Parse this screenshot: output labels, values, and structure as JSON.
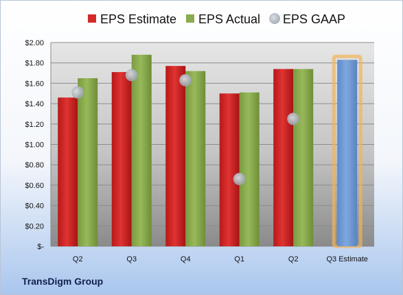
{
  "company": "TransDigm Group",
  "colors": {
    "estimate": "#d42a2a",
    "actual": "#8aab4e",
    "gaap": "#b9c1cb",
    "forecast": "#6f9ad3",
    "forecast_glow": "#f4b45a"
  },
  "chart_data": {
    "type": "bar",
    "categories": [
      "Q2",
      "Q3",
      "Q4",
      "Q1",
      "Q2",
      "Q3 Estimate"
    ],
    "series": [
      {
        "name": "EPS Estimate",
        "values": [
          1.46,
          1.71,
          1.77,
          1.5,
          1.74,
          null
        ]
      },
      {
        "name": "EPS Actual",
        "values": [
          1.65,
          1.88,
          1.72,
          1.51,
          1.74,
          1.83
        ]
      },
      {
        "name": "EPS GAAP",
        "values": [
          1.51,
          1.68,
          1.63,
          0.66,
          1.25,
          null
        ]
      }
    ],
    "y_ticks": [
      "$-",
      "$0.20",
      "$0.40",
      "$0.60",
      "$0.80",
      "$1.00",
      "$1.20",
      "$1.40",
      "$1.60",
      "$1.80",
      "$2.00"
    ],
    "ylim": [
      0,
      2.0
    ],
    "legend_position": "top",
    "grid": true
  }
}
